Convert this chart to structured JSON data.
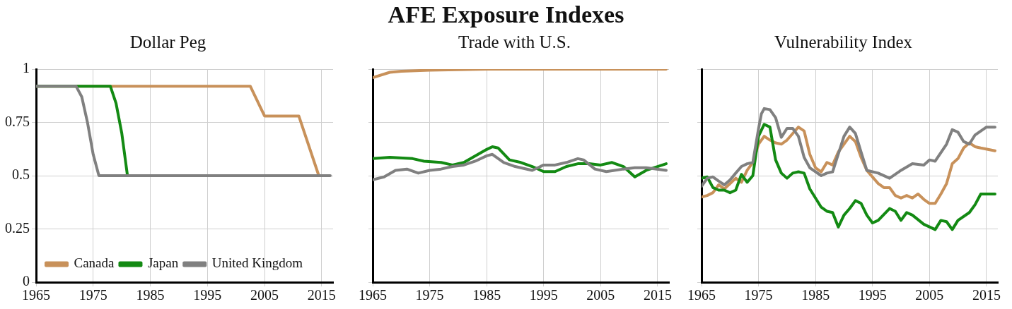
{
  "chart_data": [
    {
      "type": "other",
      "title": "AFE Exposure Indexes"
    },
    {
      "type": "line",
      "title": "Dollar Peg",
      "xlim": [
        1965,
        2017
      ],
      "xticks": [
        1965,
        1975,
        1985,
        1995,
        2005,
        2015
      ],
      "ylim": [
        0,
        1
      ],
      "yticks": [
        0,
        0.25,
        0.5,
        0.75,
        1
      ],
      "grid": true,
      "legend": "bottom left",
      "series": [
        {
          "name": "Canada",
          "color": "#c8915a",
          "x": [
            1965,
            2002.5,
            2005,
            2011,
            2014.5
          ],
          "values": [
            0.92,
            0.92,
            0.78,
            0.78,
            0.5
          ]
        },
        {
          "name": "Japan",
          "color": "#138a13",
          "x": [
            1965,
            1978,
            1979,
            1980,
            1981
          ],
          "values": [
            0.92,
            0.92,
            0.84,
            0.7,
            0.5
          ]
        },
        {
          "name": "United Kingdom",
          "color": "#808080",
          "x": [
            1965,
            1972,
            1973,
            1974,
            1975,
            1976,
            2016.5
          ],
          "values": [
            0.92,
            0.92,
            0.87,
            0.75,
            0.6,
            0.5,
            0.5
          ]
        }
      ]
    },
    {
      "type": "line",
      "title": "Trade with U.S.",
      "xlim": [
        1965,
        2017
      ],
      "xticks": [
        1965,
        1975,
        1985,
        1995,
        2005,
        2015
      ],
      "ylim": [
        0,
        1
      ],
      "yticks": [
        0,
        0.25,
        0.5,
        0.75,
        1
      ],
      "grid": true,
      "tick_labels": "x",
      "series": [
        {
          "color": "#c8915a",
          "x": [
            1965,
            1968,
            1970,
            1975,
            1985,
            2016.5
          ],
          "values": [
            0.96,
            0.985,
            0.99,
            0.995,
            1,
            1
          ]
        },
        {
          "color": "#138a13",
          "x": [
            1965,
            1968,
            1972,
            1974,
            1977,
            1979,
            1981,
            1983,
            1985,
            1986,
            1987,
            1989,
            1991,
            1993,
            1995,
            1997,
            1999,
            2001,
            2003,
            2005,
            2007,
            2009,
            2011,
            2013,
            2016.5
          ],
          "values": [
            0.58,
            0.586,
            0.58,
            0.568,
            0.562,
            0.55,
            0.562,
            0.593,
            0.623,
            0.636,
            0.63,
            0.574,
            0.562,
            0.543,
            0.519,
            0.519,
            0.543,
            0.556,
            0.556,
            0.55,
            0.562,
            0.543,
            0.494,
            0.525,
            0.556
          ]
        },
        {
          "color": "#808080",
          "x": [
            1965,
            1967,
            1969,
            1971,
            1973,
            1975,
            1977,
            1979,
            1981,
            1983,
            1985,
            1986,
            1988,
            1990,
            1993,
            1995,
            1997,
            1999,
            2001,
            2002,
            2004,
            2006,
            2009,
            2011,
            2013,
            2016.5
          ],
          "values": [
            0.481,
            0.494,
            0.525,
            0.531,
            0.512,
            0.525,
            0.531,
            0.543,
            0.55,
            0.568,
            0.593,
            0.6,
            0.562,
            0.543,
            0.525,
            0.55,
            0.55,
            0.562,
            0.58,
            0.574,
            0.531,
            0.519,
            0.531,
            0.537,
            0.537,
            0.525
          ]
        }
      ]
    },
    {
      "type": "line",
      "title": "Vulnerability Index",
      "xlim": [
        1965,
        2017
      ],
      "xticks": [
        1965,
        1975,
        1985,
        1995,
        2005,
        2015
      ],
      "ylim": [
        0,
        1
      ],
      "yticks": [
        0,
        0.25,
        0.5,
        0.75,
        1
      ],
      "grid": true,
      "tick_labels": "x",
      "series": [
        {
          "color": "#c8915a",
          "x": [
            1965,
            1966,
            1967,
            1968,
            1969,
            1970,
            1971,
            1972,
            1973,
            1974,
            1975,
            1976,
            1977,
            1978,
            1979,
            1980,
            1981,
            1982,
            1983,
            1984,
            1985,
            1986,
            1987,
            1988,
            1989,
            1991,
            1992,
            1993,
            1994,
            1996,
            1997,
            1998,
            1999,
            2000,
            2001,
            2002,
            2003,
            2004,
            2005,
            2006,
            2007,
            2008,
            2009,
            2010,
            2011,
            2012,
            2013,
            2014,
            2016.5
          ],
          "values": [
            0.4,
            0.407,
            0.42,
            0.457,
            0.438,
            0.463,
            0.488,
            0.469,
            0.525,
            0.562,
            0.648,
            0.685,
            0.667,
            0.654,
            0.648,
            0.667,
            0.698,
            0.728,
            0.71,
            0.6,
            0.537,
            0.518,
            0.562,
            0.55,
            0.611,
            0.685,
            0.66,
            0.586,
            0.525,
            0.463,
            0.444,
            0.444,
            0.407,
            0.395,
            0.407,
            0.395,
            0.414,
            0.389,
            0.37,
            0.37,
            0.414,
            0.463,
            0.556,
            0.58,
            0.63,
            0.654,
            0.636,
            0.63,
            0.617
          ]
        },
        {
          "color": "#138a13",
          "x": [
            1965,
            1966,
            1967,
            1968,
            1969,
            1970,
            1971,
            1972,
            1973,
            1974,
            1975,
            1976,
            1977,
            1978,
            1979,
            1980,
            1981,
            1982,
            1983,
            1984,
            1986,
            1987,
            1988,
            1989,
            1990,
            1991,
            1992,
            1993,
            1994,
            1995,
            1996,
            1998,
            1999,
            2000,
            2001,
            2002,
            2004,
            2006,
            2007,
            2008,
            2009,
            2010,
            2012,
            2013,
            2014,
            2016.5
          ],
          "values": [
            0.488,
            0.494,
            0.444,
            0.432,
            0.432,
            0.42,
            0.432,
            0.506,
            0.469,
            0.5,
            0.685,
            0.741,
            0.728,
            0.574,
            0.512,
            0.488,
            0.512,
            0.518,
            0.512,
            0.438,
            0.352,
            0.333,
            0.327,
            0.259,
            0.315,
            0.346,
            0.383,
            0.37,
            0.315,
            0.278,
            0.29,
            0.346,
            0.333,
            0.29,
            0.327,
            0.315,
            0.272,
            0.247,
            0.29,
            0.284,
            0.247,
            0.29,
            0.327,
            0.364,
            0.414,
            0.414
          ]
        },
        {
          "color": "#808080",
          "x": [
            1965,
            1966,
            1967,
            1968,
            1969,
            1970,
            1971,
            1972,
            1973,
            1974,
            1975,
            1975.5,
            1976,
            1977,
            1978,
            1979,
            1980,
            1981,
            1982,
            1983,
            1984,
            1986,
            1987,
            1988,
            1990,
            1991,
            1992,
            1993,
            1994,
            1996,
            1998,
            2000,
            2002,
            2004,
            2005,
            2006,
            2008,
            2009,
            2010,
            2011,
            2012,
            2013,
            2015,
            2016.5
          ],
          "values": [
            0.45,
            0.488,
            0.494,
            0.475,
            0.457,
            0.48,
            0.512,
            0.543,
            0.556,
            0.562,
            0.72,
            0.79,
            0.815,
            0.81,
            0.772,
            0.68,
            0.722,
            0.722,
            0.685,
            0.586,
            0.537,
            0.5,
            0.512,
            0.518,
            0.685,
            0.728,
            0.698,
            0.611,
            0.525,
            0.512,
            0.488,
            0.525,
            0.556,
            0.55,
            0.574,
            0.568,
            0.648,
            0.716,
            0.704,
            0.66,
            0.648,
            0.691,
            0.728,
            0.728
          ]
        }
      ]
    }
  ]
}
